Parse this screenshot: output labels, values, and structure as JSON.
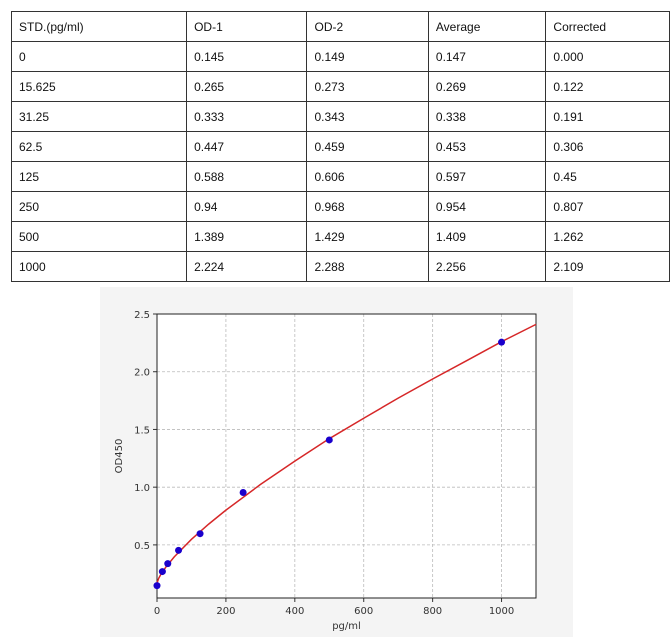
{
  "table": {
    "headers": [
      "STD.(pg/ml)",
      "OD-1",
      "OD-2",
      "Average",
      "Corrected"
    ],
    "rows": [
      [
        "0",
        "0.145",
        "0.149",
        "0.147",
        "0.000"
      ],
      [
        "15.625",
        "0.265",
        "0.273",
        "0.269",
        "0.122"
      ],
      [
        "31.25",
        "0.333",
        "0.343",
        "0.338",
        "0.191"
      ],
      [
        "62.5",
        "0.447",
        "0.459",
        "0.453",
        "0.306"
      ],
      [
        "125",
        "0.588",
        "0.606",
        "0.597",
        "0.45"
      ],
      [
        "250",
        "0.94",
        "0.968",
        "0.954",
        "0.807"
      ],
      [
        "500",
        "1.389",
        "1.429",
        "1.409",
        "1.262"
      ],
      [
        "1000",
        "2.224",
        "2.288",
        "2.256",
        "2.109"
      ]
    ]
  },
  "chart_data": {
    "type": "scatter",
    "xlabel": "pg/ml",
    "ylabel": "OD450",
    "xlim": [
      0,
      1100
    ],
    "ylim": [
      0.04,
      2.5
    ],
    "xticks": [
      0,
      200,
      400,
      600,
      800,
      1000
    ],
    "yticks": [
      0.5,
      1.0,
      1.5,
      2.0,
      2.5
    ],
    "ytick_labels": [
      "0.5",
      "1.0",
      "1.5",
      "2.0",
      "2.5"
    ],
    "grid": true,
    "points": {
      "x": [
        0,
        15.625,
        31.25,
        62.5,
        125,
        250,
        500,
        1000
      ],
      "y": [
        0.147,
        0.269,
        0.338,
        0.453,
        0.597,
        0.954,
        1.409,
        2.256
      ],
      "color": "#1a00cc"
    },
    "fit_curve": {
      "x": [
        0,
        5,
        10,
        25,
        50,
        100,
        150,
        200,
        300,
        400,
        500,
        600,
        700,
        800,
        900,
        1000,
        1100
      ],
      "y": [
        0.17,
        0.211,
        0.238,
        0.305,
        0.396,
        0.548,
        0.68,
        0.801,
        1.023,
        1.226,
        1.42,
        1.597,
        1.771,
        1.937,
        2.098,
        2.26,
        2.41
      ],
      "color": "#d62728"
    }
  }
}
